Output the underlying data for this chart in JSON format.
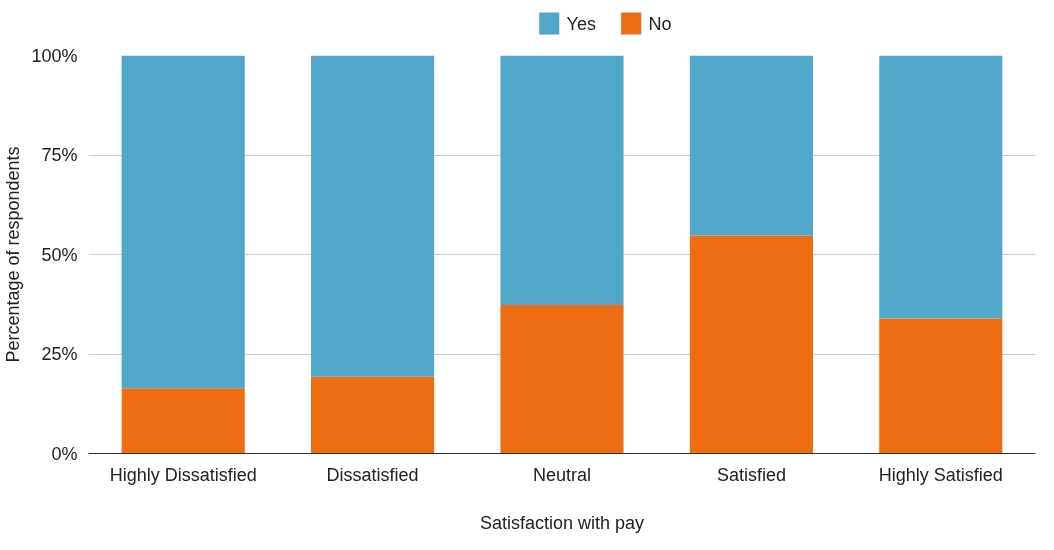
{
  "chart_data": {
    "type": "bar",
    "stacked": true,
    "xlabel": "Satisfaction with pay",
    "ylabel": "Percentage of respondents",
    "categories": [
      "Highly Dissatisfied",
      "Dissatisfied",
      "Neutral",
      "Satisfied",
      "Highly Satisfied"
    ],
    "series": [
      {
        "name": "No",
        "color": "#ee6c12",
        "values": [
          16.4,
          19.3,
          37.3,
          54.8,
          33.9
        ]
      },
      {
        "name": "Yes",
        "color": "#50a7c9",
        "values": [
          83.6,
          80.7,
          62.7,
          45.2,
          66.1
        ]
      }
    ],
    "ylim": [
      0,
      100
    ],
    "yticks": [
      {
        "value": 0,
        "label": "0%"
      },
      {
        "value": 25,
        "label": "25%"
      },
      {
        "value": 50,
        "label": "50%"
      },
      {
        "value": 75,
        "label": "75%"
      },
      {
        "value": 100,
        "label": "100%"
      }
    ],
    "grid": "y",
    "legend": "top"
  }
}
